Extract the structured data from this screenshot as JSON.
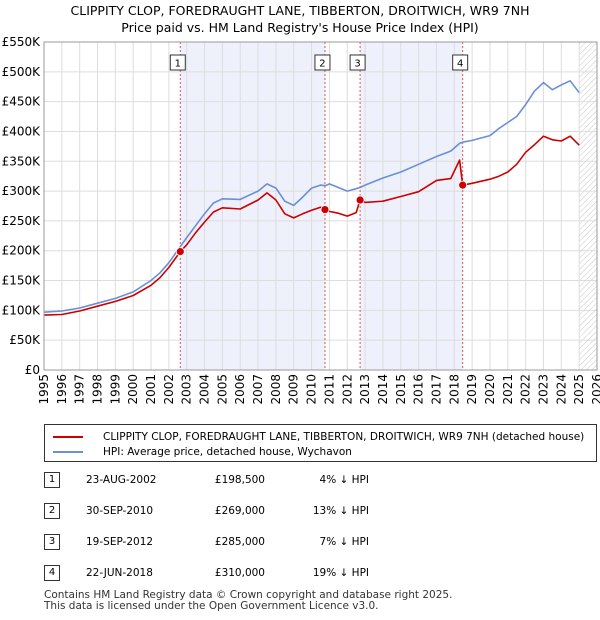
{
  "title_line1": "CLIPPITY CLOP, FOREDRAUGHT LANE, TIBBERTON, DROITWICH, WR9 7NH",
  "title_line2": "Price paid vs. HM Land Registry's House Price Index (HPI)",
  "chart_data": {
    "type": "line",
    "title": "CLIPPITY CLOP, FOREDRAUGHT LANE, TIBBERTON, DROITWICH, WR9 7NH — Price paid vs. HM Land Registry's House Price Index (HPI)",
    "xlim": [
      1995,
      2026
    ],
    "ylim": [
      0,
      550000
    ],
    "y_ticks": [
      0,
      50000,
      100000,
      150000,
      200000,
      250000,
      300000,
      350000,
      400000,
      450000,
      500000,
      550000
    ],
    "y_tick_labels": [
      "£0",
      "£50K",
      "£100K",
      "£150K",
      "£200K",
      "£250K",
      "£300K",
      "£350K",
      "£400K",
      "£450K",
      "£500K",
      "£550K"
    ],
    "x_ticks": [
      1995,
      1996,
      1997,
      1998,
      1999,
      2000,
      2001,
      2002,
      2003,
      2004,
      2005,
      2006,
      2007,
      2008,
      2009,
      2010,
      2011,
      2012,
      2013,
      2014,
      2015,
      2016,
      2017,
      2018,
      2019,
      2020,
      2021,
      2022,
      2023,
      2024,
      2025,
      2026
    ],
    "x_tick_labels": [
      "1995",
      "1996",
      "1997",
      "1998",
      "1999",
      "2000",
      "2001",
      "2002",
      "2003",
      "2004",
      "2005",
      "2006",
      "2007",
      "2008",
      "2009",
      "2010",
      "2011",
      "2012",
      "2013",
      "2014",
      "2015",
      "2016",
      "2017",
      "2018",
      "2019",
      "2020",
      "2021",
      "2022",
      "2023",
      "2024",
      "2025",
      "2026"
    ],
    "grid": true,
    "shaded_periods": [
      [
        2002.64,
        2010.75
      ],
      [
        2012.72,
        2018.47
      ]
    ],
    "hatched_future_from": 2025.0,
    "series": [
      {
        "name": "CLIPPITY CLOP, FOREDRAUGHT LANE, TIBBERTON, DROITWICH, WR9 7NH (detached house)",
        "color": "#cc0000",
        "x": [
          1995.0,
          1996.0,
          1997.0,
          1998.0,
          1999.0,
          2000.0,
          2001.0,
          2001.5,
          2002.0,
          2002.64,
          2003.0,
          2003.5,
          2004.0,
          2004.5,
          2005.0,
          2006.0,
          2007.0,
          2007.5,
          2008.0,
          2008.5,
          2009.0,
          2009.5,
          2010.0,
          2010.5,
          2010.75,
          2011.0,
          2011.5,
          2012.0,
          2012.5,
          2012.72,
          2013.0,
          2014.0,
          2015.0,
          2016.0,
          2017.0,
          2017.8,
          2018.3,
          2018.47,
          2019.0,
          2020.0,
          2020.5,
          2021.0,
          2021.5,
          2022.0,
          2022.5,
          2023.0,
          2023.5,
          2024.0,
          2024.5,
          2025.0
        ],
        "values": [
          92000,
          93000,
          99000,
          107000,
          115000,
          125000,
          142000,
          155000,
          172000,
          198500,
          210000,
          230000,
          248000,
          265000,
          272000,
          270000,
          285000,
          297000,
          285000,
          262000,
          255000,
          262000,
          268000,
          273000,
          269000,
          266000,
          263000,
          258000,
          264000,
          285000,
          281000,
          283000,
          291000,
          299000,
          318000,
          321000,
          352000,
          310000,
          313000,
          320000,
          325000,
          332000,
          345000,
          365000,
          378000,
          392000,
          386000,
          384000,
          392000,
          377000
        ]
      },
      {
        "name": "HPI: Average price, detached house, Wychavon",
        "color": "#6b8fd4",
        "x": [
          1995.0,
          1996.0,
          1997.0,
          1998.0,
          1999.0,
          2000.0,
          2001.0,
          2001.5,
          2002.0,
          2002.64,
          2003.0,
          2003.5,
          2004.0,
          2004.5,
          2005.0,
          2006.0,
          2007.0,
          2007.5,
          2008.0,
          2008.5,
          2009.0,
          2009.5,
          2010.0,
          2010.5,
          2010.75,
          2011.0,
          2011.5,
          2012.0,
          2012.5,
          2012.72,
          2013.0,
          2014.0,
          2015.0,
          2016.0,
          2017.0,
          2017.8,
          2018.3,
          2018.47,
          2019.0,
          2020.0,
          2020.5,
          2021.0,
          2021.5,
          2022.0,
          2022.5,
          2023.0,
          2023.5,
          2024.0,
          2024.5,
          2025.0
        ],
        "values": [
          97000,
          99000,
          104000,
          112000,
          120000,
          131000,
          150000,
          163000,
          180000,
          207000,
          222000,
          242000,
          262000,
          280000,
          287000,
          286000,
          300000,
          312000,
          305000,
          283000,
          276000,
          290000,
          305000,
          310000,
          309000,
          312000,
          306000,
          300000,
          304000,
          306000,
          310000,
          322000,
          332000,
          345000,
          358000,
          367000,
          380000,
          382000,
          385000,
          393000,
          405000,
          415000,
          425000,
          445000,
          468000,
          482000,
          470000,
          478000,
          485000,
          465000
        ]
      }
    ],
    "transactions": [
      {
        "label": "1",
        "x": 2002.64,
        "y": 198500
      },
      {
        "label": "2",
        "x": 2010.75,
        "y": 269000
      },
      {
        "label": "3",
        "x": 2012.72,
        "y": 285000
      },
      {
        "label": "4",
        "x": 2018.47,
        "y": 310000
      }
    ]
  },
  "legend": {
    "property_label": "CLIPPITY CLOP, FOREDRAUGHT LANE, TIBBERTON, DROITWICH, WR9 7NH (detached house)",
    "hpi_label": "HPI: Average price, detached house, Wychavon"
  },
  "transactions_table": [
    {
      "num": "1",
      "date": "23-AUG-2002",
      "price": "£198,500",
      "hpi": "4% ↓ HPI"
    },
    {
      "num": "2",
      "date": "30-SEP-2010",
      "price": "£269,000",
      "hpi": "13% ↓ HPI"
    },
    {
      "num": "3",
      "date": "19-SEP-2012",
      "price": "£285,000",
      "hpi": "7% ↓ HPI"
    },
    {
      "num": "4",
      "date": "22-JUN-2018",
      "price": "£310,000",
      "hpi": "19% ↓ HPI"
    }
  ],
  "footer": {
    "line1": "Contains HM Land Registry data © Crown copyright and database right 2025.",
    "line2": "This data is licensed under the Open Government Licence v3.0."
  },
  "colors": {
    "property_line": "#cc0000",
    "hpi_line": "#6b8fd4",
    "shade": "#eef1fb",
    "grid": "#dddddd"
  }
}
